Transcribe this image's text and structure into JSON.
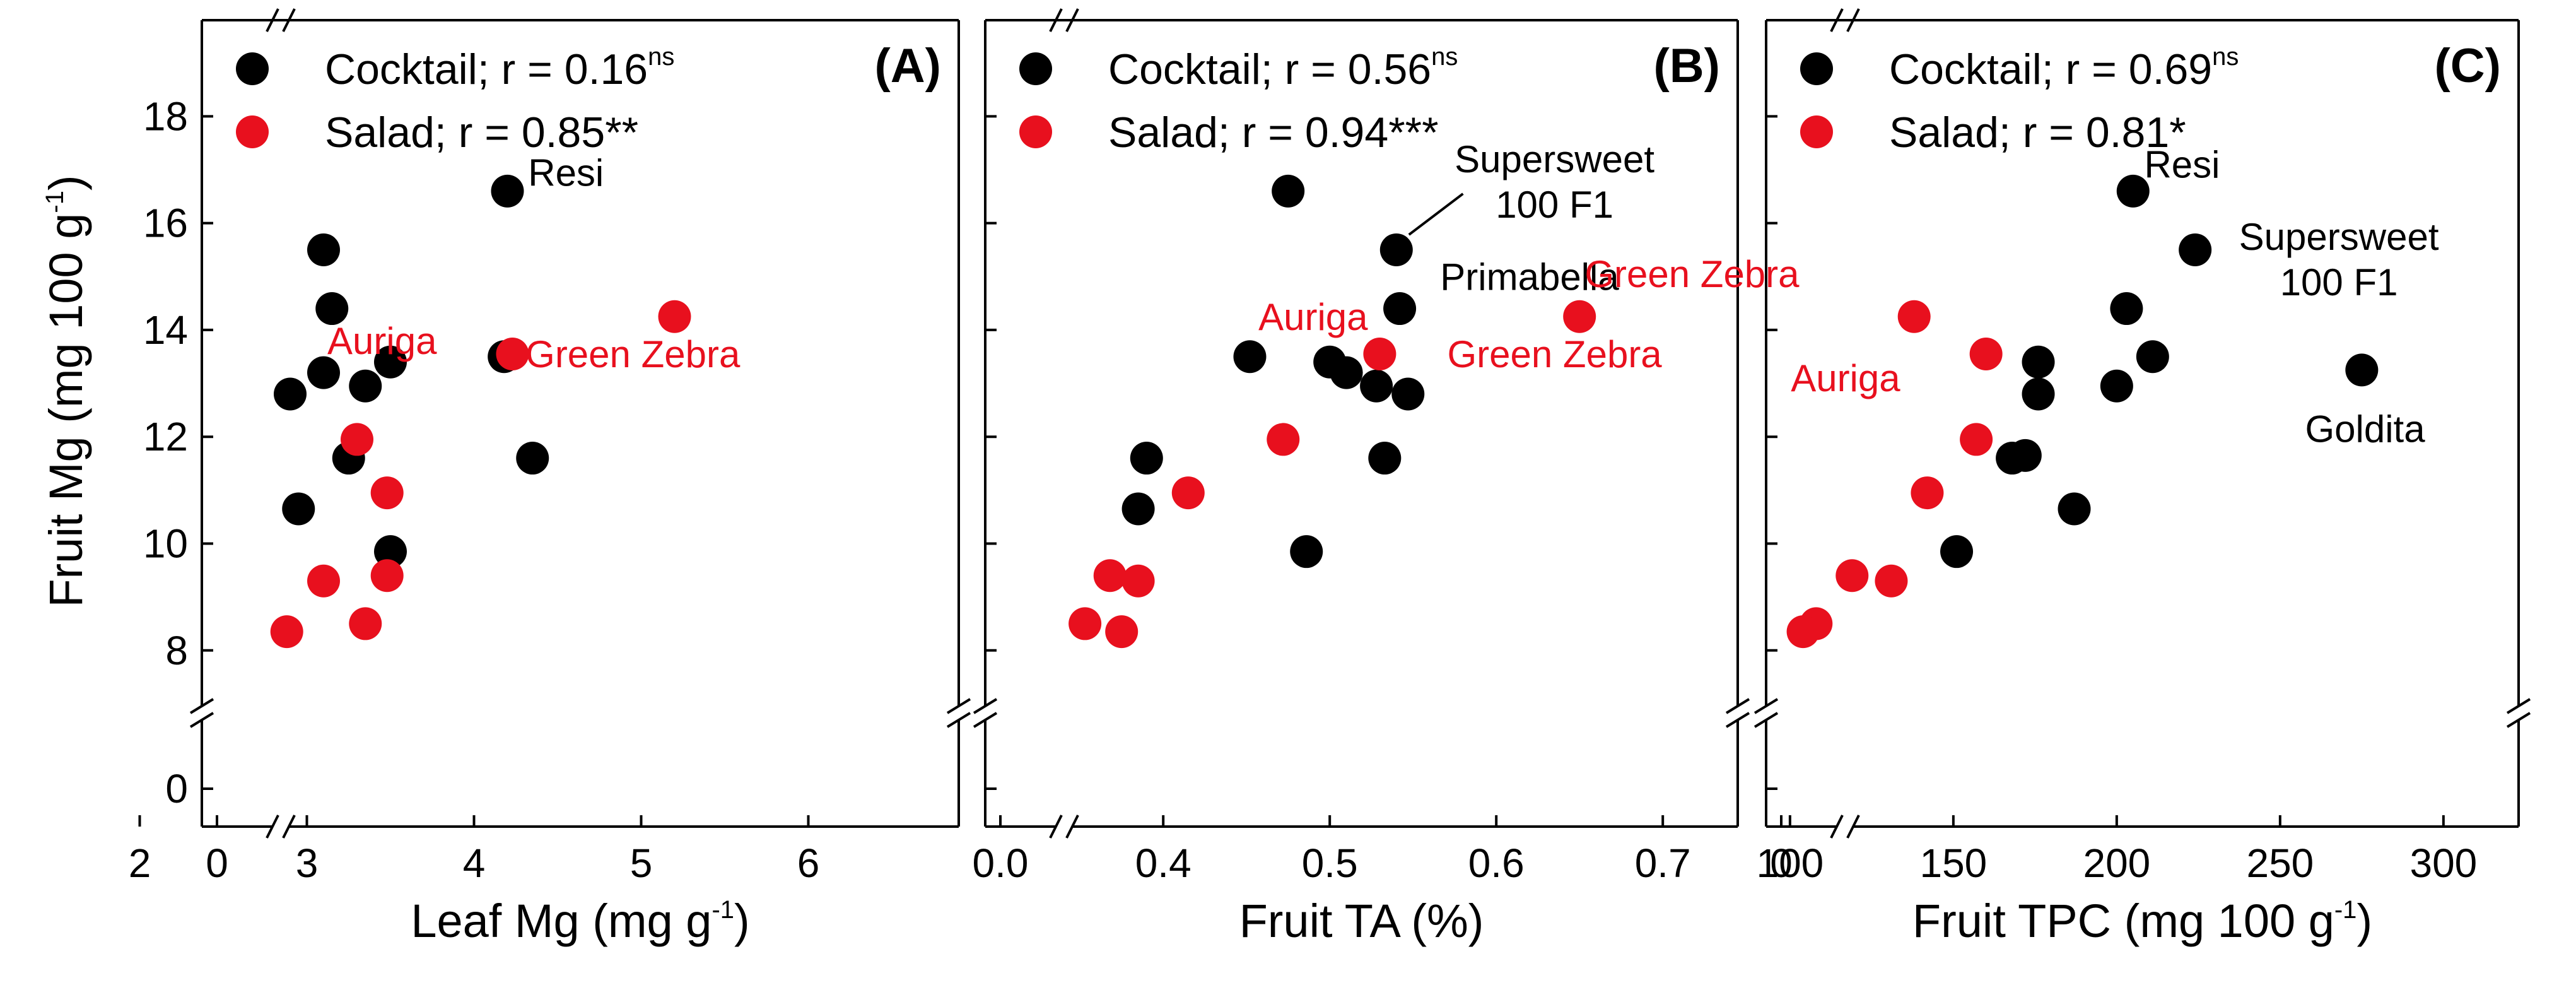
{
  "figure": {
    "y_axis_label": "Fruit Mg (mg 100 g",
    "y_axis_label_sup": "-1",
    "y_axis_label_close": ")",
    "colors": {
      "cocktail": "#000000",
      "salad": "#e8101e",
      "frame": "#000000"
    }
  },
  "chart_data": [
    {
      "type": "scatter",
      "panel_label": "(A)",
      "xlabel": "Leaf Mg (mg g",
      "xlabel_sup": "-1",
      "xlabel_close": ")",
      "ylabel": "Fruit Mg (mg 100 g-1)",
      "xlim": [
        0,
        6.9
      ],
      "x_break": true,
      "xticks": [
        0,
        2,
        3,
        4,
        5,
        6
      ],
      "ylim_lower_tick": 0,
      "ylim_upper": [
        7.3,
        19.8
      ],
      "yticks": [
        8,
        10,
        12,
        14,
        16,
        18
      ],
      "legend": [
        {
          "name": "Cocktail",
          "text": "Cocktail; r = 0.16",
          "sup": "ns"
        },
        {
          "name": "Salad",
          "text": "Salad; r = 0.85**",
          "sup": ""
        }
      ],
      "series": [
        {
          "name": "Cocktail",
          "points": [
            [
              3.1,
              15.5
            ],
            [
              3.15,
              14.4
            ],
            [
              3.1,
              13.2
            ],
            [
              2.9,
              12.8
            ],
            [
              3.35,
              12.95
            ],
            [
              3.5,
              13.4
            ],
            [
              3.25,
              11.6
            ],
            [
              2.95,
              10.65
            ],
            [
              3.5,
              9.85
            ],
            [
              4.2,
              16.6
            ],
            [
              4.18,
              13.5
            ],
            [
              4.35,
              11.6
            ]
          ]
        },
        {
          "name": "Salad",
          "points": [
            [
              4.23,
              13.55
            ],
            [
              5.2,
              14.25
            ],
            [
              3.3,
              11.95
            ],
            [
              3.48,
              10.95
            ],
            [
              3.1,
              9.3
            ],
            [
              3.48,
              9.4
            ],
            [
              2.88,
              8.35
            ],
            [
              3.35,
              8.5
            ]
          ]
        }
      ],
      "annotations": [
        {
          "text": "Resi",
          "x": 4.55,
          "y": 16.7,
          "series": "Cocktail"
        },
        {
          "text": "Auriga",
          "x": 3.45,
          "y": 13.55,
          "series": "Salad"
        },
        {
          "text": "Green Zebra",
          "x": 4.95,
          "y": 13.3,
          "series": "Salad"
        }
      ]
    },
    {
      "type": "scatter",
      "panel_label": "(B)",
      "xlabel": "Fruit TA (%)",
      "xlabel_sup": "",
      "xlabel_close": "",
      "ylabel": "Fruit Mg (mg 100 g-1)",
      "xlim": [
        0.0,
        0.745
      ],
      "x_break": true,
      "xticks": [
        0.0,
        0.4,
        0.5,
        0.6,
        0.7
      ],
      "xtick_labels": [
        "0.0",
        "0.4",
        "0.5",
        "0.6",
        "0.7"
      ],
      "ylim_lower_tick": 0,
      "ylim_upper": [
        7.3,
        19.8
      ],
      "yticks": [
        8,
        10,
        12,
        14,
        16,
        18
      ],
      "legend": [
        {
          "name": "Cocktail",
          "text": "Cocktail; r = 0.56",
          "sup": "ns"
        },
        {
          "name": "Salad",
          "text": "Salad; r = 0.94***",
          "sup": ""
        }
      ],
      "series": [
        {
          "name": "Cocktail",
          "points": [
            [
              0.475,
              16.6
            ],
            [
              0.54,
              15.5
            ],
            [
              0.542,
              14.4
            ],
            [
              0.452,
              13.5
            ],
            [
              0.5,
              13.4
            ],
            [
              0.51,
              13.2
            ],
            [
              0.528,
              12.95
            ],
            [
              0.547,
              12.8
            ],
            [
              0.39,
              11.6
            ],
            [
              0.533,
              11.6
            ],
            [
              0.385,
              10.65
            ],
            [
              0.486,
              9.85
            ]
          ]
        },
        {
          "name": "Salad",
          "points": [
            [
              0.65,
              14.25
            ],
            [
              0.53,
              13.55
            ],
            [
              0.472,
              11.95
            ],
            [
              0.415,
              10.95
            ],
            [
              0.368,
              9.4
            ],
            [
              0.385,
              9.3
            ],
            [
              0.353,
              8.5
            ],
            [
              0.375,
              8.35
            ]
          ]
        }
      ],
      "annotations": [
        {
          "text": "Supersweet",
          "x": 0.635,
          "y": 16.95,
          "series": "Cocktail"
        },
        {
          "text": "100 F1",
          "x": 0.635,
          "y": 16.1,
          "series": "Cocktail"
        },
        {
          "text": "Primabella",
          "x": 0.62,
          "y": 14.75,
          "series": "Cocktail"
        },
        {
          "text": "Auriga",
          "x": 0.49,
          "y": 14.0,
          "series": "Salad"
        },
        {
          "text": "Green Zebra",
          "x": 0.635,
          "y": 13.3,
          "series": "Salad"
        }
      ]
    },
    {
      "type": "scatter",
      "panel_label": "(C)",
      "xlabel": "Fruit TPC (mg 100 g",
      "xlabel_sup": "-1",
      "xlabel_close": ")",
      "ylabel": "Fruit Mg (mg 100 g-1)",
      "xlim": [
        0,
        323
      ],
      "x_break": true,
      "xticks": [
        0,
        100,
        150,
        200,
        250,
        300
      ],
      "ylim_lower_tick": 0,
      "ylim_upper": [
        7.3,
        19.8
      ],
      "yticks": [
        8,
        10,
        12,
        14,
        16,
        18
      ],
      "legend": [
        {
          "name": "Cocktail",
          "text": "Cocktail; r = 0.69",
          "sup": "ns"
        },
        {
          "name": "Salad",
          "text": "Salad; r = 0.81*",
          "sup": ""
        }
      ],
      "series": [
        {
          "name": "Cocktail",
          "points": [
            [
              205,
              16.6
            ],
            [
              224,
              15.5
            ],
            [
              203,
              14.4
            ],
            [
              211,
              13.5
            ],
            [
              176,
              13.4
            ],
            [
              275,
              13.25
            ],
            [
              200,
              12.95
            ],
            [
              176,
              12.8
            ],
            [
              168,
              11.6
            ],
            [
              172,
              11.65
            ],
            [
              187,
              10.65
            ],
            [
              151,
              9.85
            ]
          ]
        },
        {
          "name": "Salad",
          "points": [
            [
              138,
              14.25
            ],
            [
              160,
              13.55
            ],
            [
              157,
              11.95
            ],
            [
              142,
              10.95
            ],
            [
              119,
              9.4
            ],
            [
              131,
              9.3
            ],
            [
              108,
              8.5
            ],
            [
              104,
              8.35
            ]
          ]
        }
      ],
      "annotations": [
        {
          "text": "Resi",
          "x": 220,
          "y": 16.85,
          "series": "Cocktail"
        },
        {
          "text": "Supersweet",
          "x": 268,
          "y": 15.5,
          "series": "Cocktail"
        },
        {
          "text": "100 F1",
          "x": 268,
          "y": 14.65,
          "series": "Cocktail"
        },
        {
          "text": "Goldita",
          "x": 276,
          "y": 11.9,
          "series": "Cocktail"
        },
        {
          "text": "Green Zebra",
          "x": 70,
          "y": 14.8,
          "series": "Salad"
        },
        {
          "text": "Auriga",
          "x": 117,
          "y": 12.85,
          "series": "Salad"
        }
      ]
    }
  ]
}
